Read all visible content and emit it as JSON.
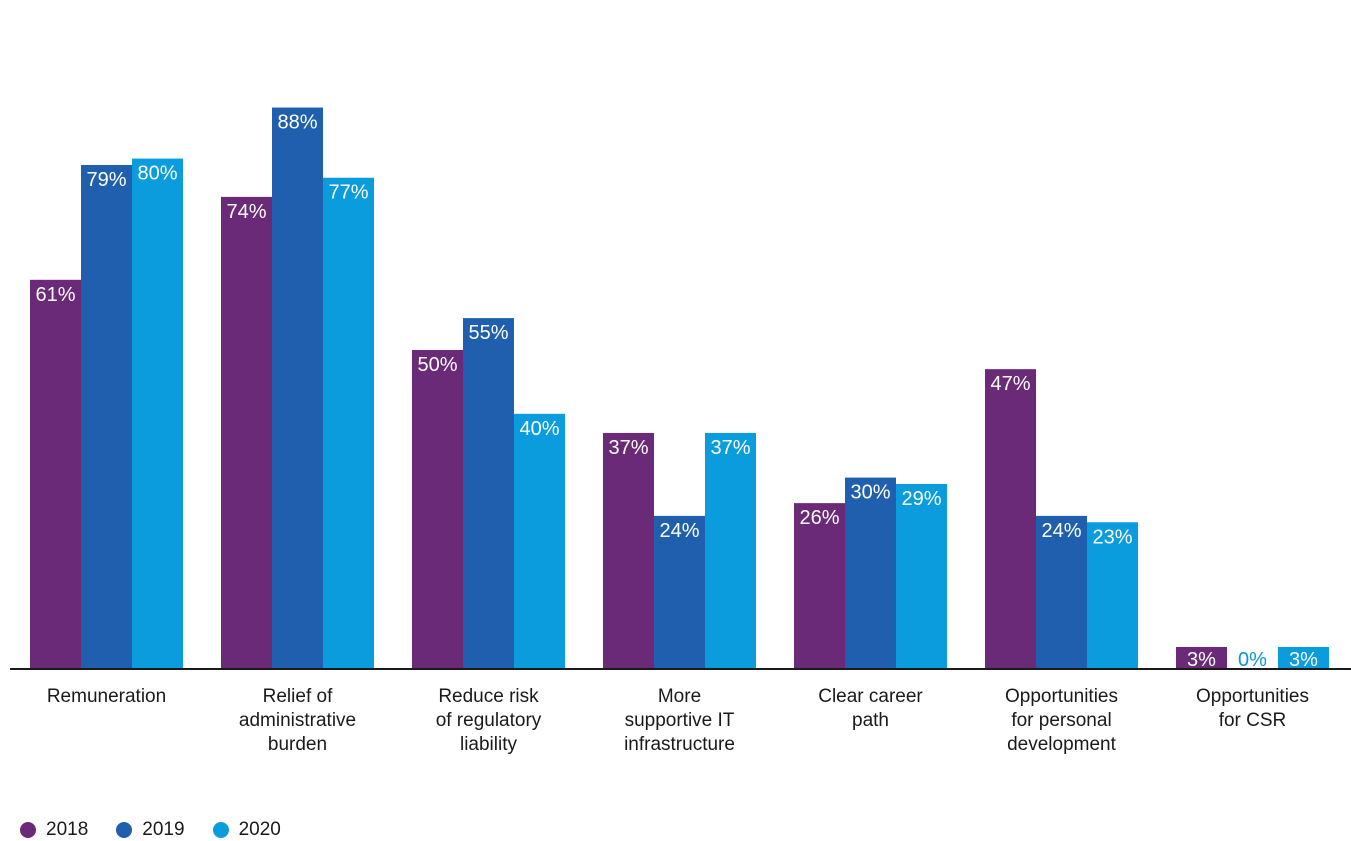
{
  "chart_data": {
    "type": "bar",
    "title": "",
    "xlabel": "",
    "ylabel": "",
    "ylim": [
      0,
      100
    ],
    "grid": false,
    "legend_position": "bottom-left",
    "categories": [
      "Remuneration",
      "Relief of administrative burden",
      "Reduce risk of regulatory liability",
      "More supportive IT infrastructure",
      "Clear career path",
      "Opportunities for personal development",
      "Opportunities for CSR"
    ],
    "category_lines": [
      [
        "Remuneration"
      ],
      [
        "Relief of",
        "administrative",
        "burden"
      ],
      [
        "Reduce risk",
        "of regulatory",
        "liability"
      ],
      [
        "More",
        "supportive IT",
        "infrastructure"
      ],
      [
        "Clear career",
        "path"
      ],
      [
        "Opportunities",
        "for personal",
        "development"
      ],
      [
        "Opportunities",
        "for CSR"
      ]
    ],
    "series": [
      {
        "name": "2018",
        "color": "#6a2a78",
        "values": [
          61,
          74,
          50,
          37,
          26,
          47,
          3
        ],
        "labels": [
          "61%",
          "74%",
          "50%",
          "37%",
          "26%",
          "47%",
          "3%"
        ]
      },
      {
        "name": "2019",
        "color": "#1f5fae",
        "values": [
          79,
          88,
          55,
          24,
          30,
          24,
          0
        ],
        "labels": [
          "79%",
          "88%",
          "55%",
          "24%",
          "30%",
          "24%",
          "0%"
        ]
      },
      {
        "name": "2020",
        "color": "#0a9cdc",
        "values": [
          80,
          77,
          40,
          37,
          29,
          23,
          3
        ],
        "labels": [
          "80%",
          "77%",
          "40%",
          "37%",
          "29%",
          "23%",
          "3%"
        ]
      }
    ]
  }
}
